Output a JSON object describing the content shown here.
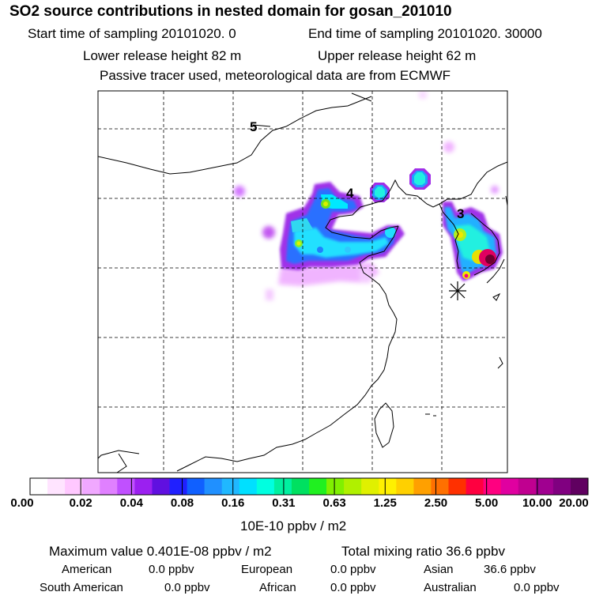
{
  "header": {
    "title": "SO2 source contributions in nested domain for gosan_201010",
    "start_sampling": "Start time of sampling 20101020.     0",
    "end_sampling": "End time of sampling 20101020. 30000",
    "lower_release": "Lower release height   82 m",
    "upper_release": "Upper release height   62 m",
    "note": "Passive tracer used, meteorological data are from ECMWF"
  },
  "map": {
    "source_labels": [
      "5",
      "4",
      "3"
    ],
    "receptor_marker": "asterisk"
  },
  "colorbar": {
    "tick_labels": [
      "0.00",
      "0.02",
      "0.04",
      "0.08",
      "0.16",
      "0.31",
      "0.63",
      "1.25",
      "2.50",
      "5.00",
      "10.00",
      "20.00"
    ],
    "units": "10E-10 ppbv / m2",
    "colors": [
      "#ffffff",
      "#ffe4ff",
      "#ffc8ff",
      "#f0a8ff",
      "#e080ff",
      "#c050ff",
      "#9b20f0",
      "#6010e0",
      "#2020ff",
      "#1060ff",
      "#2090ff",
      "#20b8ff",
      "#00e0ff",
      "#00ffe0",
      "#00f0a0",
      "#00e060",
      "#20f020",
      "#80f000",
      "#b0f000",
      "#e0f000",
      "#fff000",
      "#ffd000",
      "#ffa000",
      "#ff7000",
      "#ff3000",
      "#ff0040",
      "#ff0080",
      "#e000a0",
      "#c00090",
      "#a00090",
      "#800080",
      "#600060"
    ]
  },
  "stats": {
    "maximum": "Maximum value  0.401E-08 ppbv / m2",
    "total": "Total mixing ratio       36.6 ppbv",
    "american": "American",
    "american_val": "0.0 ppbv",
    "european": "European",
    "european_val": "0.0 ppbv",
    "asian": "Asian",
    "asian_val": "36.6 ppbv",
    "south_american": "South American",
    "south_american_val": "0.0 ppbv",
    "african": "African",
    "african_val": "0.0 ppbv",
    "australian": "Australian",
    "australian_val": "0.0 ppbv"
  },
  "plume_palette": {
    "light_purple": "#e8a0ff",
    "purple": "#b030e8",
    "blue": "#2060ff",
    "cyan": "#20e8ff",
    "teal": "#20d0d0",
    "green": "#40f060",
    "yellow": "#e8f000",
    "red": "#e00060",
    "maroon": "#700030"
  }
}
